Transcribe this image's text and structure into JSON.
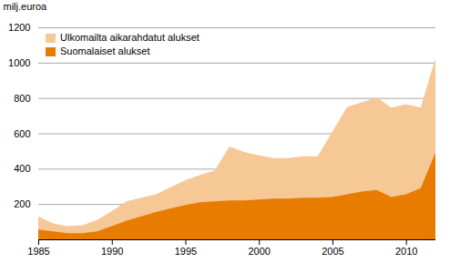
{
  "chart_data": {
    "type": "area",
    "y_label": "milj.euroa",
    "x": [
      1985,
      1986,
      1987,
      1988,
      1989,
      1990,
      1991,
      1992,
      1993,
      1994,
      1995,
      1996,
      1997,
      1998,
      1999,
      2000,
      2001,
      2002,
      2003,
      2004,
      2005,
      2006,
      2007,
      2008,
      2009,
      2010,
      2011,
      2012
    ],
    "series": [
      {
        "name": "Ulkomailta aikarahdatut alukset",
        "color": "#f5c896",
        "values": [
          130,
          90,
          75,
          80,
          110,
          160,
          215,
          235,
          255,
          295,
          335,
          365,
          390,
          525,
          495,
          475,
          460,
          460,
          470,
          470,
          610,
          750,
          775,
          805,
          745,
          765,
          745,
          1025
        ]
      },
      {
        "name": "Suomalaiset alukset",
        "color": "#e87c00",
        "values": [
          55,
          45,
          35,
          35,
          45,
          75,
          105,
          130,
          155,
          175,
          195,
          210,
          215,
          220,
          220,
          225,
          230,
          230,
          235,
          235,
          240,
          255,
          270,
          280,
          240,
          255,
          290,
          490
        ]
      }
    ],
    "stacked": false,
    "xlim": [
      1985,
      2012
    ],
    "xticks": [
      1985,
      1990,
      1995,
      2000,
      2005,
      2010
    ],
    "ylim": [
      0,
      1200
    ],
    "yticks": [
      200,
      400,
      600,
      800,
      1000,
      1200
    ],
    "grid": true,
    "legend": "upper left"
  }
}
